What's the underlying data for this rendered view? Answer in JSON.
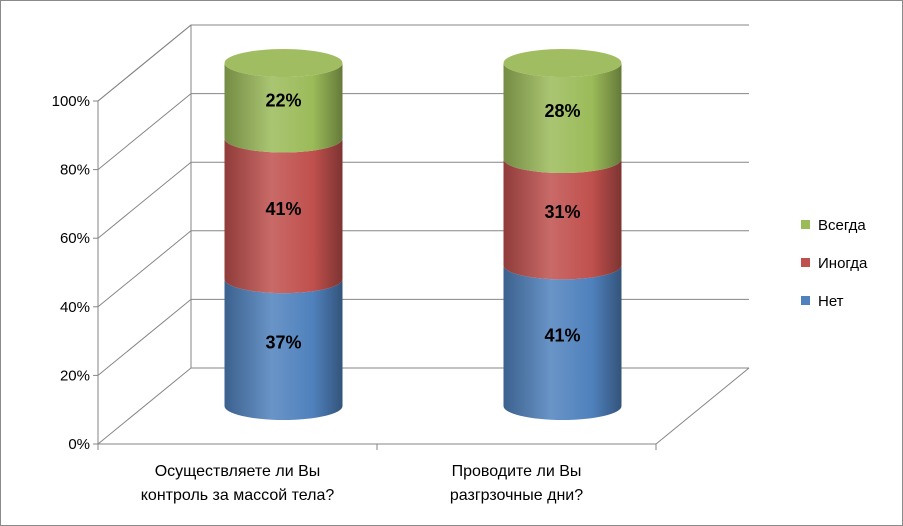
{
  "chart_data": {
    "type": "bar",
    "stacked": true,
    "percent_stacked": true,
    "style": "3d-cylinder",
    "title": "",
    "xlabel": "",
    "ylabel": "",
    "ylim": [
      0,
      100
    ],
    "yticks": [
      "0%",
      "20%",
      "40%",
      "60%",
      "80%",
      "100%"
    ],
    "grid": true,
    "legend_position": "right",
    "categories": [
      [
        "Осуществляете ли Вы",
        "контроль за массой тела?"
      ],
      [
        "Проводите ли Вы",
        "разгрзочные дни?"
      ]
    ],
    "series": [
      {
        "name": "Нет",
        "color": "#4f81bd",
        "values": [
          37,
          41
        ],
        "labels": [
          "37%",
          "41%"
        ]
      },
      {
        "name": "Иногда",
        "color": "#c0504d",
        "values": [
          41,
          31
        ],
        "labels": [
          "41%",
          "31%"
        ]
      },
      {
        "name": "Всегда",
        "color": "#9bbb59",
        "values": [
          22,
          28
        ],
        "labels": [
          "22%",
          "28%"
        ]
      }
    ],
    "legend_order": [
      "Всегда",
      "Иногда",
      "Нет"
    ]
  }
}
